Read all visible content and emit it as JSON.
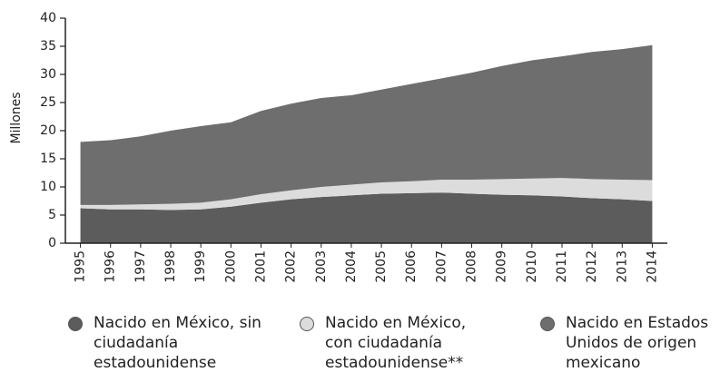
{
  "chart_data": {
    "type": "area",
    "y_label": "Millones",
    "categories": [
      "1995",
      "1996",
      "1997",
      "1998",
      "1999",
      "2000",
      "2001",
      "2002",
      "2003",
      "2004",
      "2005",
      "2006",
      "2007",
      "2008",
      "2009",
      "2010",
      "2011",
      "2012",
      "2013",
      "2014"
    ],
    "series": [
      {
        "name": "Nacido en México, sin ciudadanía estadounidense",
        "color": "#5c5c5c",
        "values": [
          6.2,
          6.0,
          6.0,
          5.9,
          6.0,
          6.5,
          7.2,
          7.8,
          8.2,
          8.5,
          8.8,
          8.9,
          9.0,
          8.8,
          8.6,
          8.5,
          8.3,
          8.0,
          7.8,
          7.5
        ]
      },
      {
        "name": "Nacido en México, con ciudadanía estadounidense**",
        "color": "#dcdcdc",
        "values": [
          0.6,
          0.8,
          0.9,
          1.1,
          1.2,
          1.3,
          1.5,
          1.6,
          1.8,
          1.9,
          2.0,
          2.1,
          2.3,
          2.5,
          2.8,
          3.0,
          3.3,
          3.4,
          3.5,
          3.7
        ]
      },
      {
        "name": "Nacido en Estados Unidos de origen mexicano",
        "color": "#6e6e6e",
        "values": [
          11.2,
          11.5,
          12.1,
          13.0,
          13.6,
          13.7,
          14.8,
          15.4,
          15.8,
          15.9,
          16.5,
          17.3,
          18.0,
          19.0,
          20.1,
          21.0,
          21.6,
          22.6,
          23.2,
          24.0
        ]
      }
    ],
    "ylim": [
      0,
      40
    ],
    "yticks": [
      0,
      5,
      10,
      15,
      20,
      25,
      30,
      35,
      40
    ],
    "stacked": true
  }
}
